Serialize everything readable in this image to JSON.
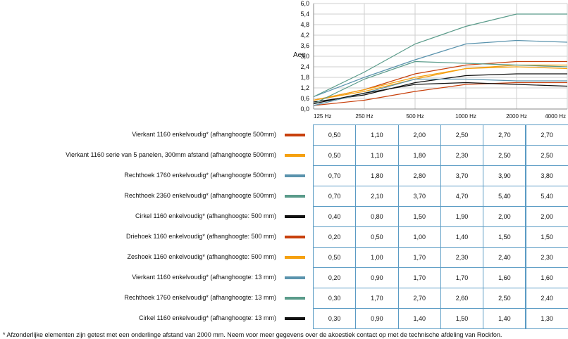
{
  "chart_data": {
    "type": "line",
    "ylabel": "Aeq",
    "ylim": [
      0,
      6.0
    ],
    "yticks": [
      "0,0",
      "0,6",
      "1,2",
      "1,8",
      "2,4",
      "3,0",
      "3,6",
      "4,2",
      "4,8",
      "5,4",
      "6,0"
    ],
    "grid": true,
    "categories": [
      "125 Hz",
      "250 Hz",
      "500 Hz",
      "1000 Hz",
      "2000 Hz",
      "4000 Hz"
    ],
    "series": [
      {
        "name": "Vierkant 1160 enkelvoudig* (afhanghoogte 500mm)",
        "color": "#c8400c",
        "values": [
          0.5,
          1.1,
          2.0,
          2.5,
          2.7,
          2.7
        ],
        "labels": [
          "0,50",
          "1,10",
          "2,00",
          "2,50",
          "2,70",
          "2,70"
        ]
      },
      {
        "name": "Vierkant 1160 serie van 5 panelen, 300mm afstand (afhanghoogte 500mm)",
        "color": "#f5a00f",
        "values": [
          0.5,
          1.1,
          1.8,
          2.3,
          2.5,
          2.5
        ],
        "labels": [
          "0,50",
          "1,10",
          "1,80",
          "2,30",
          "2,50",
          "2,50"
        ]
      },
      {
        "name": "Rechthoek 1760 enkelvoudig* (afhanghoogte 500mm)",
        "color": "#5a93ad",
        "values": [
          0.7,
          1.8,
          2.8,
          3.7,
          3.9,
          3.8
        ],
        "labels": [
          "0,70",
          "1,80",
          "2,80",
          "3,70",
          "3,90",
          "3,80"
        ]
      },
      {
        "name": "Rechthoek 2360 enkelvoudig* (afhanghoogte 500mm)",
        "color": "#5a9b8a",
        "values": [
          0.7,
          2.1,
          3.7,
          4.7,
          5.4,
          5.4
        ],
        "labels": [
          "0,70",
          "2,10",
          "3,70",
          "4,70",
          "5,40",
          "5,40"
        ]
      },
      {
        "name": "Cirkel 1160 enkelvoudig* (afhanghoogte: 500 mm)",
        "color": "#111111",
        "values": [
          0.4,
          0.8,
          1.5,
          1.9,
          2.0,
          2.0
        ],
        "labels": [
          "0,40",
          "0,80",
          "1,50",
          "1,90",
          "2,00",
          "2,00"
        ]
      },
      {
        "name": "Driehoek 1160 enkelvoudig* (afhanghoogte: 500 mm)",
        "color": "#c8400c",
        "values": [
          0.2,
          0.5,
          1.0,
          1.4,
          1.5,
          1.5
        ],
        "labels": [
          "0,20",
          "0,50",
          "1,00",
          "1,40",
          "1,50",
          "1,50"
        ]
      },
      {
        "name": "Zeshoek 1160 enkelvoudig* (afhanghoogte: 500 mm)",
        "color": "#f5a00f",
        "values": [
          0.5,
          1.0,
          1.7,
          2.3,
          2.4,
          2.3
        ],
        "labels": [
          "0,50",
          "1,00",
          "1,70",
          "2,30",
          "2,40",
          "2,30"
        ]
      },
      {
        "name": "Vierkant 1160 enkelvoudig* (afhanghoogte: 13 mm)",
        "color": "#5a93ad",
        "values": [
          0.2,
          0.9,
          1.7,
          1.7,
          1.6,
          1.6
        ],
        "labels": [
          "0,20",
          "0,90",
          "1,70",
          "1,70",
          "1,60",
          "1,60"
        ]
      },
      {
        "name": "Rechthoek 1760 enkelvoudig* (afhanghoogte: 13 mm)",
        "color": "#5a9b8a",
        "values": [
          0.3,
          1.7,
          2.7,
          2.6,
          2.5,
          2.4
        ],
        "labels": [
          "0,30",
          "1,70",
          "2,70",
          "2,60",
          "2,50",
          "2,40"
        ]
      },
      {
        "name": "Cirkel 1160 enkelvoudig* (afhanghoogte: 13 mm)",
        "color": "#111111",
        "values": [
          0.3,
          0.9,
          1.4,
          1.5,
          1.4,
          1.3
        ],
        "labels": [
          "0,30",
          "0,90",
          "1,40",
          "1,50",
          "1,40",
          "1,30"
        ]
      }
    ]
  },
  "footnote": "* Afzonderlijke elementen zijn getest met een onderlinge afstand van 2000 mm. Neem voor meer gegevens over de akoestiek contact op met de technische afdeling van Rockfon."
}
